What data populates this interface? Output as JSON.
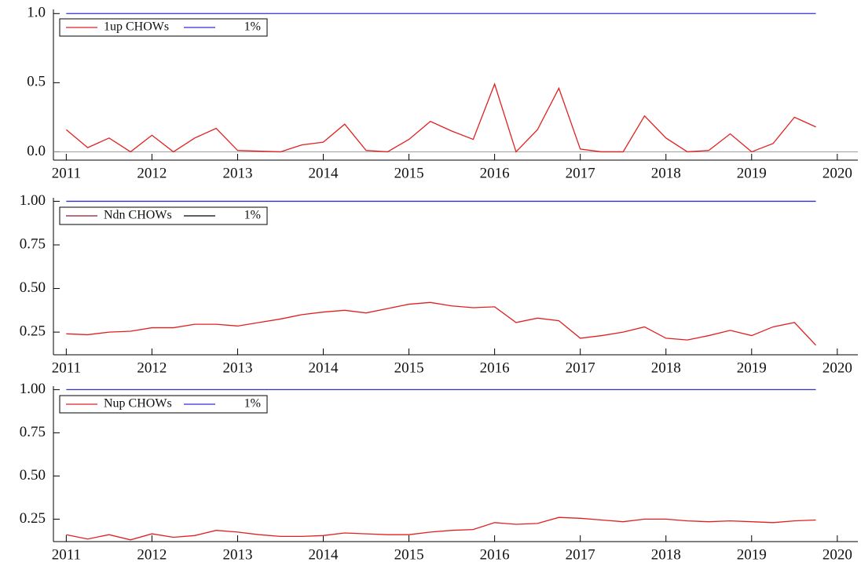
{
  "chart_data": [
    {
      "type": "line",
      "x": [
        2011,
        2011.25,
        2011.5,
        2011.75,
        2012,
        2012.25,
        2012.5,
        2012.75,
        2013,
        2013.25,
        2013.5,
        2013.75,
        2014,
        2014.25,
        2014.5,
        2014.75,
        2015,
        2015.25,
        2015.5,
        2015.75,
        2016,
        2016.25,
        2016.5,
        2016.75,
        2017,
        2017.25,
        2017.5,
        2017.75,
        2018,
        2018.25,
        2018.5,
        2018.75,
        2019,
        2019.25,
        2019.5,
        2019.75
      ],
      "series": [
        {
          "name": "1up CHOWs",
          "color": "#e02020",
          "values": [
            0.16,
            0.03,
            0.1,
            0.0,
            0.12,
            0.0,
            0.1,
            0.17,
            0.01,
            0.005,
            0.0,
            0.05,
            0.07,
            0.2,
            0.01,
            0.0,
            0.09,
            0.22,
            0.15,
            0.09,
            0.49,
            0.0,
            0.16,
            0.46,
            0.02,
            0.0,
            0.0,
            0.26,
            0.1,
            0.0,
            0.01,
            0.13,
            0.0,
            0.06,
            0.25,
            0.18
          ]
        },
        {
          "name": "1%",
          "color": "#3030d0",
          "values": [
            1,
            1,
            1,
            1,
            1,
            1,
            1,
            1,
            1,
            1,
            1,
            1,
            1,
            1,
            1,
            1,
            1,
            1,
            1,
            1,
            1,
            1,
            1,
            1,
            1,
            1,
            1,
            1,
            1,
            1,
            1,
            1,
            1,
            1,
            1,
            1
          ]
        }
      ],
      "xlim": [
        2010.85,
        2020.24
      ],
      "xticks": [
        2011,
        2012,
        2013,
        2014,
        2015,
        2016,
        2017,
        2018,
        2019,
        2020
      ],
      "ylim": [
        -0.06,
        1.03
      ],
      "yticks": [
        {
          "value": 0,
          "label": "0.0"
        },
        {
          "value": 0.5,
          "label": "0.5"
        },
        {
          "value": 1,
          "label": "1.0"
        }
      ],
      "zero_line": true,
      "legend": "upper left"
    },
    {
      "type": "line",
      "x": [
        2011,
        2011.25,
        2011.5,
        2011.75,
        2012,
        2012.25,
        2012.5,
        2012.75,
        2013,
        2013.25,
        2013.5,
        2013.75,
        2014,
        2014.25,
        2014.5,
        2014.75,
        2015,
        2015.25,
        2015.5,
        2015.75,
        2016,
        2016.25,
        2016.5,
        2016.75,
        2017,
        2017.25,
        2017.5,
        2017.75,
        2018,
        2018.25,
        2018.5,
        2018.75,
        2019,
        2019.25,
        2019.5,
        2019.75
      ],
      "series": [
        {
          "name": "Ndn CHOWs",
          "color": "#e02020",
          "legend_color": "#7a2030",
          "values": [
            0.24,
            0.235,
            0.25,
            0.255,
            0.275,
            0.275,
            0.295,
            0.295,
            0.285,
            0.305,
            0.325,
            0.35,
            0.365,
            0.375,
            0.36,
            0.385,
            0.41,
            0.42,
            0.4,
            0.39,
            0.395,
            0.305,
            0.33,
            0.315,
            0.215,
            0.23,
            0.25,
            0.28,
            0.215,
            0.205,
            0.23,
            0.26,
            0.23,
            0.28,
            0.305,
            0.175
          ]
        },
        {
          "name": "1%",
          "color": "#3030d0",
          "legend_color": "#000000",
          "values": [
            1,
            1,
            1,
            1,
            1,
            1,
            1,
            1,
            1,
            1,
            1,
            1,
            1,
            1,
            1,
            1,
            1,
            1,
            1,
            1,
            1,
            1,
            1,
            1,
            1,
            1,
            1,
            1,
            1,
            1,
            1,
            1,
            1,
            1,
            1,
            1
          ]
        }
      ],
      "xlim": [
        2010.85,
        2020.24
      ],
      "xticks": [
        2011,
        2012,
        2013,
        2014,
        2015,
        2016,
        2017,
        2018,
        2019,
        2020
      ],
      "ylim": [
        0.12,
        1.02
      ],
      "yticks": [
        0.25,
        {
          "value": 0.5,
          "label": "0.50"
        },
        0.75,
        {
          "value": 1,
          "label": "1.00"
        }
      ],
      "zero_line": false,
      "legend": "upper left"
    },
    {
      "type": "line",
      "x": [
        2011,
        2011.25,
        2011.5,
        2011.75,
        2012,
        2012.25,
        2012.5,
        2012.75,
        2013,
        2013.25,
        2013.5,
        2013.75,
        2014,
        2014.25,
        2014.5,
        2014.75,
        2015,
        2015.25,
        2015.5,
        2015.75,
        2016,
        2016.25,
        2016.5,
        2016.75,
        2017,
        2017.25,
        2017.5,
        2017.75,
        2018,
        2018.25,
        2018.5,
        2018.75,
        2019,
        2019.25,
        2019.5,
        2019.75
      ],
      "series": [
        {
          "name": "Nup CHOWs",
          "color": "#e02020",
          "values": [
            0.16,
            0.135,
            0.16,
            0.13,
            0.165,
            0.145,
            0.155,
            0.185,
            0.175,
            0.16,
            0.15,
            0.15,
            0.155,
            0.17,
            0.165,
            0.16,
            0.16,
            0.175,
            0.185,
            0.19,
            0.23,
            0.22,
            0.225,
            0.26,
            0.255,
            0.245,
            0.235,
            0.25,
            0.25,
            0.24,
            0.235,
            0.24,
            0.235,
            0.23,
            0.24,
            0.245
          ]
        },
        {
          "name": "1%",
          "color": "#3030d0",
          "values": [
            1,
            1,
            1,
            1,
            1,
            1,
            1,
            1,
            1,
            1,
            1,
            1,
            1,
            1,
            1,
            1,
            1,
            1,
            1,
            1,
            1,
            1,
            1,
            1,
            1,
            1,
            1,
            1,
            1,
            1,
            1,
            1,
            1,
            1,
            1,
            1
          ]
        }
      ],
      "xlim": [
        2010.85,
        2020.24
      ],
      "xticks": [
        2011,
        2012,
        2013,
        2014,
        2015,
        2016,
        2017,
        2018,
        2019,
        2020
      ],
      "ylim": [
        0.12,
        1.02
      ],
      "yticks": [
        0.25,
        {
          "value": 0.5,
          "label": "0.50"
        },
        0.75,
        {
          "value": 1,
          "label": "1.00"
        }
      ],
      "zero_line": false,
      "legend": "upper left"
    }
  ]
}
